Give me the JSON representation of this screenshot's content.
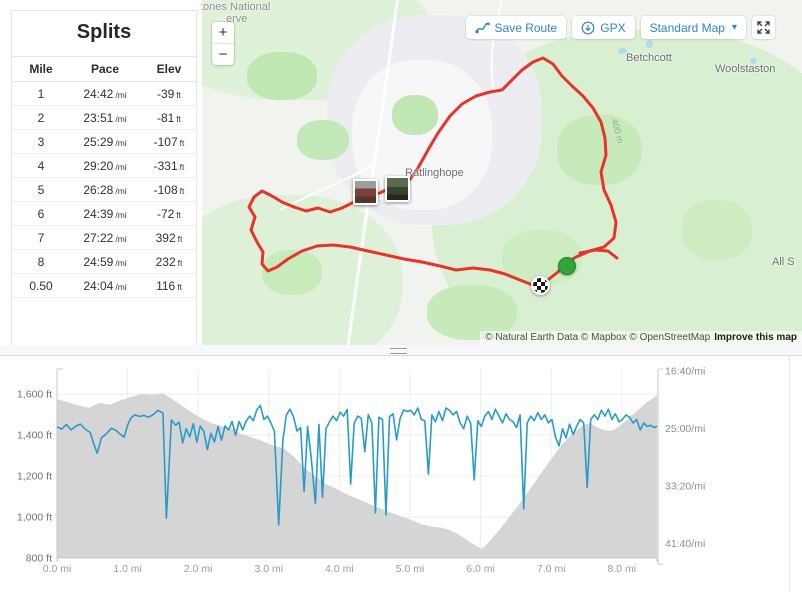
{
  "colors": {
    "route_red": "#e8332a",
    "pace_blue": "#2a9bc7",
    "elevation_gray": "#d5d5d5",
    "button_blue": "#2f86c8",
    "start_marker_green": "#2fa637",
    "map_green": "#d9efd2"
  },
  "splits": {
    "title": "Splits",
    "columns": [
      "Mile",
      "Pace",
      "Elev"
    ],
    "pace_unit": "/mi",
    "elev_unit": "ft",
    "rows": [
      {
        "mile": "1",
        "pace": "24:42",
        "elev": "-39"
      },
      {
        "mile": "2",
        "pace": "23:51",
        "elev": "-81"
      },
      {
        "mile": "3",
        "pace": "25:29",
        "elev": "-107"
      },
      {
        "mile": "4",
        "pace": "29:20",
        "elev": "-331"
      },
      {
        "mile": "5",
        "pace": "26:28",
        "elev": "-108"
      },
      {
        "mile": "6",
        "pace": "24:39",
        "elev": "-72"
      },
      {
        "mile": "7",
        "pace": "27:22",
        "elev": "392"
      },
      {
        "mile": "8",
        "pace": "24:59",
        "elev": "232"
      },
      {
        "mile": "0.50",
        "pace": "24:04",
        "elev": "116"
      }
    ]
  },
  "map": {
    "zoom_in": "+",
    "zoom_out": "−",
    "buttons": {
      "save_route": "Save Route",
      "gpx": "GPX",
      "map_style": "Standard Map",
      "caret": "▾"
    },
    "labels": {
      "reserve_line1": "tones National",
      "reserve_line2": "erve",
      "ratlinghope": "Ratlinghope",
      "betchcott": "Betchcott",
      "woolstaston": "Woolstaston",
      "all_stretton_clipped": "All S",
      "contour": "400 m"
    },
    "attribution": {
      "text": "© Natural Earth Data © Mapbox © OpenStreetMap",
      "link": "Improve this map"
    }
  },
  "chart_data": {
    "type": "area+line",
    "x_axis": {
      "range_mi": [
        0,
        8.5
      ],
      "ticks": [
        {
          "label": "0.0 mi",
          "value": 0
        },
        {
          "label": "1.0 mi",
          "value": 1
        },
        {
          "label": "2.0 mi",
          "value": 2
        },
        {
          "label": "3.0 mi",
          "value": 3
        },
        {
          "label": "4.0 mi",
          "value": 4
        },
        {
          "label": "5.0 mi",
          "value": 5
        },
        {
          "label": "6.0 mi",
          "value": 6
        },
        {
          "label": "7.0 mi",
          "value": 7
        },
        {
          "label": "8.0 mi",
          "value": 8
        }
      ]
    },
    "y_left": {
      "name": "Elevation",
      "range_ft": [
        800,
        1720
      ],
      "ticks": [
        {
          "label": "1,600 ft",
          "value": 1600
        },
        {
          "label": "1,400 ft",
          "value": 1400
        },
        {
          "label": "1,200 ft",
          "value": 1200
        },
        {
          "label": "1,000 ft",
          "value": 1000
        },
        {
          "label": "800 ft",
          "value": 800
        }
      ]
    },
    "y_right": {
      "name": "Pace",
      "ticks": [
        {
          "label": "16:40/mi",
          "value_sec": 1000
        },
        {
          "label": "25:00/mi",
          "value_sec": 1500
        },
        {
          "label": "33:20/mi",
          "value_sec": 2000
        },
        {
          "label": "41:40/mi",
          "value_sec": 2500
        }
      ]
    },
    "series": [
      {
        "name": "elevation",
        "type": "area",
        "color": "#d5d5d5",
        "units": "ft",
        "points": [
          [
            0,
            1575
          ],
          [
            0.15,
            1560
          ],
          [
            0.3,
            1545
          ],
          [
            0.45,
            1532
          ],
          [
            0.6,
            1556
          ],
          [
            0.75,
            1548
          ],
          [
            0.9,
            1570
          ],
          [
            1.05,
            1586
          ],
          [
            1.2,
            1600
          ],
          [
            1.35,
            1596
          ],
          [
            1.5,
            1604
          ],
          [
            1.6,
            1582
          ],
          [
            1.75,
            1548
          ],
          [
            1.9,
            1512
          ],
          [
            2.05,
            1482
          ],
          [
            2.2,
            1456
          ],
          [
            2.35,
            1442
          ],
          [
            2.5,
            1430
          ],
          [
            2.6,
            1406
          ],
          [
            2.75,
            1390
          ],
          [
            2.9,
            1372
          ],
          [
            3.05,
            1350
          ],
          [
            3.2,
            1336
          ],
          [
            3.35,
            1296
          ],
          [
            3.5,
            1242
          ],
          [
            3.65,
            1200
          ],
          [
            3.8,
            1162
          ],
          [
            3.95,
            1138
          ],
          [
            4.1,
            1112
          ],
          [
            4.25,
            1090
          ],
          [
            4.4,
            1068
          ],
          [
            4.55,
            1046
          ],
          [
            4.7,
            1026
          ],
          [
            4.85,
            1006
          ],
          [
            5,
            988
          ],
          [
            5.15,
            966
          ],
          [
            5.3,
            954
          ],
          [
            5.45,
            948
          ],
          [
            5.55,
            938
          ],
          [
            5.65,
            922
          ],
          [
            5.75,
            902
          ],
          [
            5.85,
            878
          ],
          [
            5.95,
            856
          ],
          [
            6.02,
            846
          ],
          [
            6.1,
            872
          ],
          [
            6.25,
            930
          ],
          [
            6.4,
            996
          ],
          [
            6.55,
            1064
          ],
          [
            6.7,
            1136
          ],
          [
            6.85,
            1210
          ],
          [
            7,
            1282
          ],
          [
            7.15,
            1352
          ],
          [
            7.3,
            1408
          ],
          [
            7.45,
            1448
          ],
          [
            7.55,
            1458
          ],
          [
            7.65,
            1438
          ],
          [
            7.75,
            1424
          ],
          [
            7.85,
            1420
          ],
          [
            7.95,
            1440
          ],
          [
            8.05,
            1468
          ],
          [
            8.15,
            1498
          ],
          [
            8.25,
            1528
          ],
          [
            8.35,
            1558
          ],
          [
            8.45,
            1582
          ],
          [
            8.5,
            1596
          ]
        ]
      },
      {
        "name": "pace",
        "type": "line",
        "color": "#2a9bc7",
        "units": "sec_per_mi",
        "points": [
          [
            0,
            1485
          ],
          [
            0.07,
            1505
          ],
          [
            0.13,
            1465
          ],
          [
            0.2,
            1512
          ],
          [
            0.27,
            1478
          ],
          [
            0.33,
            1462
          ],
          [
            0.4,
            1505
          ],
          [
            0.47,
            1535
          ],
          [
            0.53,
            1650
          ],
          [
            0.57,
            1715
          ],
          [
            0.63,
            1580
          ],
          [
            0.7,
            1545
          ],
          [
            0.77,
            1498
          ],
          [
            0.83,
            1515
          ],
          [
            0.9,
            1552
          ],
          [
            0.95,
            1576
          ],
          [
            1,
            1470
          ],
          [
            1.05,
            1408
          ],
          [
            1.1,
            1382
          ],
          [
            1.17,
            1396
          ],
          [
            1.23,
            1386
          ],
          [
            1.3,
            1402
          ],
          [
            1.37,
            1376
          ],
          [
            1.43,
            1342
          ],
          [
            1.5,
            1366
          ],
          [
            1.55,
            2280
          ],
          [
            1.62,
            1424
          ],
          [
            1.68,
            1472
          ],
          [
            1.73,
            1444
          ],
          [
            1.78,
            1625
          ],
          [
            1.83,
            1502
          ],
          [
            1.88,
            1572
          ],
          [
            1.93,
            1458
          ],
          [
            1.98,
            1618
          ],
          [
            2.03,
            1478
          ],
          [
            2.08,
            1524
          ],
          [
            2.13,
            1684
          ],
          [
            2.18,
            1542
          ],
          [
            2.23,
            1618
          ],
          [
            2.28,
            1484
          ],
          [
            2.33,
            1602
          ],
          [
            2.38,
            1478
          ],
          [
            2.43,
            1512
          ],
          [
            2.48,
            1438
          ],
          [
            2.53,
            1560
          ],
          [
            2.58,
            1438
          ],
          [
            2.63,
            1512
          ],
          [
            2.68,
            1436
          ],
          [
            2.73,
            1392
          ],
          [
            2.78,
            1432
          ],
          [
            2.83,
            1338
          ],
          [
            2.88,
            1298
          ],
          [
            2.93,
            1422
          ],
          [
            2.98,
            1392
          ],
          [
            3.03,
            1452
          ],
          [
            3.08,
            1524
          ],
          [
            3.14,
            2338
          ],
          [
            3.2,
            1598
          ],
          [
            3.25,
            1382
          ],
          [
            3.3,
            1332
          ],
          [
            3.35,
            1398
          ],
          [
            3.4,
            1522
          ],
          [
            3.45,
            1492
          ],
          [
            3.5,
            2048
          ],
          [
            3.55,
            1482
          ],
          [
            3.6,
            1752
          ],
          [
            3.66,
            2152
          ],
          [
            3.71,
            1464
          ],
          [
            3.76,
            2098
          ],
          [
            3.81,
            1502
          ],
          [
            3.86,
            1442
          ],
          [
            3.91,
            1392
          ],
          [
            3.96,
            1432
          ],
          [
            4.01,
            1358
          ],
          [
            4.06,
            1392
          ],
          [
            4.11,
            1334
          ],
          [
            4.16,
            1982
          ],
          [
            4.21,
            1452
          ],
          [
            4.26,
            1392
          ],
          [
            4.31,
            1412
          ],
          [
            4.36,
            1702
          ],
          [
            4.41,
            1378
          ],
          [
            4.46,
            1452
          ],
          [
            4.51,
            2232
          ],
          [
            4.56,
            1402
          ],
          [
            4.61,
            1422
          ],
          [
            4.66,
            2252
          ],
          [
            4.71,
            1398
          ],
          [
            4.76,
            1372
          ],
          [
            4.81,
            1598
          ],
          [
            4.86,
            1412
          ],
          [
            4.91,
            1338
          ],
          [
            4.96,
            1352
          ],
          [
            5.01,
            1342
          ],
          [
            5.06,
            1382
          ],
          [
            5.11,
            1322
          ],
          [
            5.16,
            1422
          ],
          [
            5.21,
            1432
          ],
          [
            5.26,
            1898
          ],
          [
            5.31,
            1382
          ],
          [
            5.36,
            1442
          ],
          [
            5.41,
            1352
          ],
          [
            5.46,
            1432
          ],
          [
            5.51,
            1322
          ],
          [
            5.56,
            1342
          ],
          [
            5.61,
            1382
          ],
          [
            5.66,
            1352
          ],
          [
            5.71,
            1452
          ],
          [
            5.76,
            1502
          ],
          [
            5.81,
            1392
          ],
          [
            5.86,
            1456
          ],
          [
            5.91,
            1948
          ],
          [
            5.96,
            1432
          ],
          [
            6.01,
            1482
          ],
          [
            6.06,
            1392
          ],
          [
            6.11,
            1352
          ],
          [
            6.16,
            1422
          ],
          [
            6.21,
            1332
          ],
          [
            6.26,
            1392
          ],
          [
            6.31,
            1452
          ],
          [
            6.36,
            1372
          ],
          [
            6.41,
            1422
          ],
          [
            6.46,
            1442
          ],
          [
            6.51,
            1492
          ],
          [
            6.56,
            1382
          ],
          [
            6.61,
            2198
          ],
          [
            6.66,
            1452
          ],
          [
            6.71,
            1392
          ],
          [
            6.76,
            1432
          ],
          [
            6.81,
            1362
          ],
          [
            6.86,
            1422
          ],
          [
            6.91,
            1382
          ],
          [
            6.96,
            1452
          ],
          [
            7.01,
            1422
          ],
          [
            7.06,
            1572
          ],
          [
            7.11,
            1652
          ],
          [
            7.16,
            1502
          ],
          [
            7.21,
            1582
          ],
          [
            7.26,
            1462
          ],
          [
            7.31,
            1552
          ],
          [
            7.36,
            1482
          ],
          [
            7.41,
            1422
          ],
          [
            7.46,
            1452
          ],
          [
            7.51,
            2012
          ],
          [
            7.56,
            1422
          ],
          [
            7.61,
            1382
          ],
          [
            7.66,
            1422
          ],
          [
            7.71,
            1342
          ],
          [
            7.76,
            1392
          ],
          [
            7.81,
            1332
          ],
          [
            7.86,
            1422
          ],
          [
            7.91,
            1372
          ],
          [
            7.96,
            1442
          ],
          [
            8.01,
            1422
          ],
          [
            8.06,
            1382
          ],
          [
            8.11,
            1402
          ],
          [
            8.16,
            1452
          ],
          [
            8.21,
            1422
          ],
          [
            8.26,
            1512
          ],
          [
            8.31,
            1452
          ],
          [
            8.36,
            1482
          ],
          [
            8.41,
            1472
          ],
          [
            8.46,
            1492
          ],
          [
            8.5,
            1480
          ]
        ]
      }
    ]
  }
}
